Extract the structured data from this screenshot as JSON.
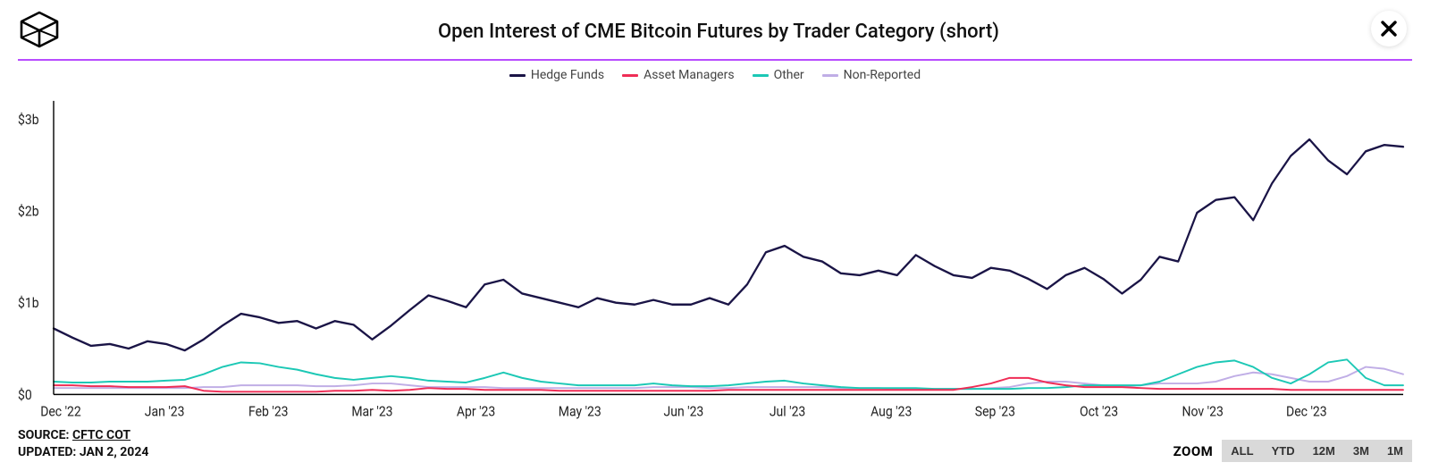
{
  "title": "Open Interest of CME Bitcoin Futures by Trader Category (short)",
  "divider_color": "#b84cff",
  "background_color": "#ffffff",
  "chart": {
    "type": "line",
    "y_ticks": [
      0,
      1,
      2,
      3
    ],
    "y_tick_labels": [
      "$0",
      "$1b",
      "$2b",
      "$3b"
    ],
    "ylim": [
      0,
      3.2
    ],
    "axis_color": "#000000",
    "x_labels": [
      "Dec '22",
      "Jan '23",
      "Feb '23",
      "Mar '23",
      "Apr '23",
      "May '23",
      "Jun '23",
      "Jul '23",
      "Aug '23",
      "Sep '23",
      "Oct '23",
      "Nov '23",
      "Dec '23"
    ],
    "series": [
      {
        "name": "Hedge Funds",
        "color": "#1a1446",
        "width": 2.2,
        "values": [
          0.72,
          0.62,
          0.53,
          0.55,
          0.5,
          0.58,
          0.55,
          0.48,
          0.6,
          0.75,
          0.88,
          0.84,
          0.78,
          0.8,
          0.72,
          0.8,
          0.76,
          0.6,
          0.75,
          0.92,
          1.08,
          1.02,
          0.95,
          1.2,
          1.25,
          1.1,
          1.05,
          1.0,
          0.95,
          1.05,
          1.0,
          0.98,
          1.03,
          0.98,
          0.98,
          1.05,
          0.98,
          1.2,
          1.55,
          1.62,
          1.5,
          1.45,
          1.32,
          1.3,
          1.35,
          1.3,
          1.52,
          1.4,
          1.3,
          1.27,
          1.38,
          1.35,
          1.26,
          1.15,
          1.3,
          1.38,
          1.26,
          1.1,
          1.25,
          1.5,
          1.45,
          1.98,
          2.12,
          2.15,
          1.9,
          2.3,
          2.6,
          2.78,
          2.55,
          2.4,
          2.65,
          2.72,
          2.7
        ]
      },
      {
        "name": "Asset Managers",
        "color": "#ef2d56",
        "width": 1.8,
        "values": [
          0.1,
          0.1,
          0.09,
          0.09,
          0.08,
          0.08,
          0.08,
          0.09,
          0.04,
          0.03,
          0.03,
          0.03,
          0.03,
          0.03,
          0.03,
          0.04,
          0.04,
          0.05,
          0.04,
          0.05,
          0.07,
          0.06,
          0.06,
          0.05,
          0.05,
          0.05,
          0.05,
          0.04,
          0.04,
          0.04,
          0.04,
          0.04,
          0.04,
          0.04,
          0.04,
          0.04,
          0.05,
          0.05,
          0.05,
          0.05,
          0.05,
          0.05,
          0.05,
          0.05,
          0.05,
          0.05,
          0.05,
          0.05,
          0.05,
          0.08,
          0.12,
          0.18,
          0.18,
          0.13,
          0.1,
          0.08,
          0.08,
          0.08,
          0.07,
          0.06,
          0.06,
          0.06,
          0.06,
          0.06,
          0.06,
          0.06,
          0.05,
          0.05,
          0.05,
          0.05,
          0.05,
          0.05,
          0.05
        ]
      },
      {
        "name": "Other",
        "color": "#1cc8b5",
        "width": 1.8,
        "values": [
          0.14,
          0.13,
          0.13,
          0.14,
          0.14,
          0.14,
          0.15,
          0.16,
          0.22,
          0.3,
          0.35,
          0.34,
          0.3,
          0.27,
          0.22,
          0.18,
          0.16,
          0.18,
          0.2,
          0.18,
          0.15,
          0.14,
          0.13,
          0.18,
          0.24,
          0.18,
          0.14,
          0.12,
          0.1,
          0.1,
          0.1,
          0.1,
          0.12,
          0.1,
          0.09,
          0.09,
          0.1,
          0.12,
          0.14,
          0.15,
          0.12,
          0.1,
          0.08,
          0.07,
          0.07,
          0.07,
          0.07,
          0.06,
          0.06,
          0.06,
          0.06,
          0.06,
          0.07,
          0.07,
          0.08,
          0.1,
          0.1,
          0.1,
          0.1,
          0.14,
          0.22,
          0.3,
          0.35,
          0.37,
          0.3,
          0.18,
          0.12,
          0.22,
          0.35,
          0.38,
          0.18,
          0.1,
          0.1
        ]
      },
      {
        "name": "Non-Reported",
        "color": "#c0aee6",
        "width": 1.8,
        "values": [
          0.07,
          0.07,
          0.07,
          0.07,
          0.07,
          0.07,
          0.07,
          0.07,
          0.08,
          0.08,
          0.1,
          0.1,
          0.1,
          0.1,
          0.09,
          0.09,
          0.1,
          0.12,
          0.12,
          0.1,
          0.08,
          0.08,
          0.08,
          0.08,
          0.07,
          0.07,
          0.07,
          0.07,
          0.07,
          0.07,
          0.07,
          0.07,
          0.08,
          0.08,
          0.08,
          0.07,
          0.07,
          0.08,
          0.08,
          0.08,
          0.08,
          0.08,
          0.07,
          0.07,
          0.07,
          0.06,
          0.06,
          0.06,
          0.06,
          0.06,
          0.07,
          0.08,
          0.12,
          0.14,
          0.14,
          0.12,
          0.1,
          0.09,
          0.1,
          0.12,
          0.12,
          0.12,
          0.14,
          0.2,
          0.24,
          0.22,
          0.18,
          0.14,
          0.14,
          0.2,
          0.3,
          0.28,
          0.22
        ]
      }
    ]
  },
  "meta": {
    "source_label": "SOURCE:",
    "source_value": "CFTC COT",
    "updated_label": "UPDATED:",
    "updated_value": "JAN 2, 2024"
  },
  "zoom": {
    "label": "ZOOM",
    "buttons": [
      "ALL",
      "YTD",
      "12M",
      "3M",
      "1M"
    ]
  }
}
